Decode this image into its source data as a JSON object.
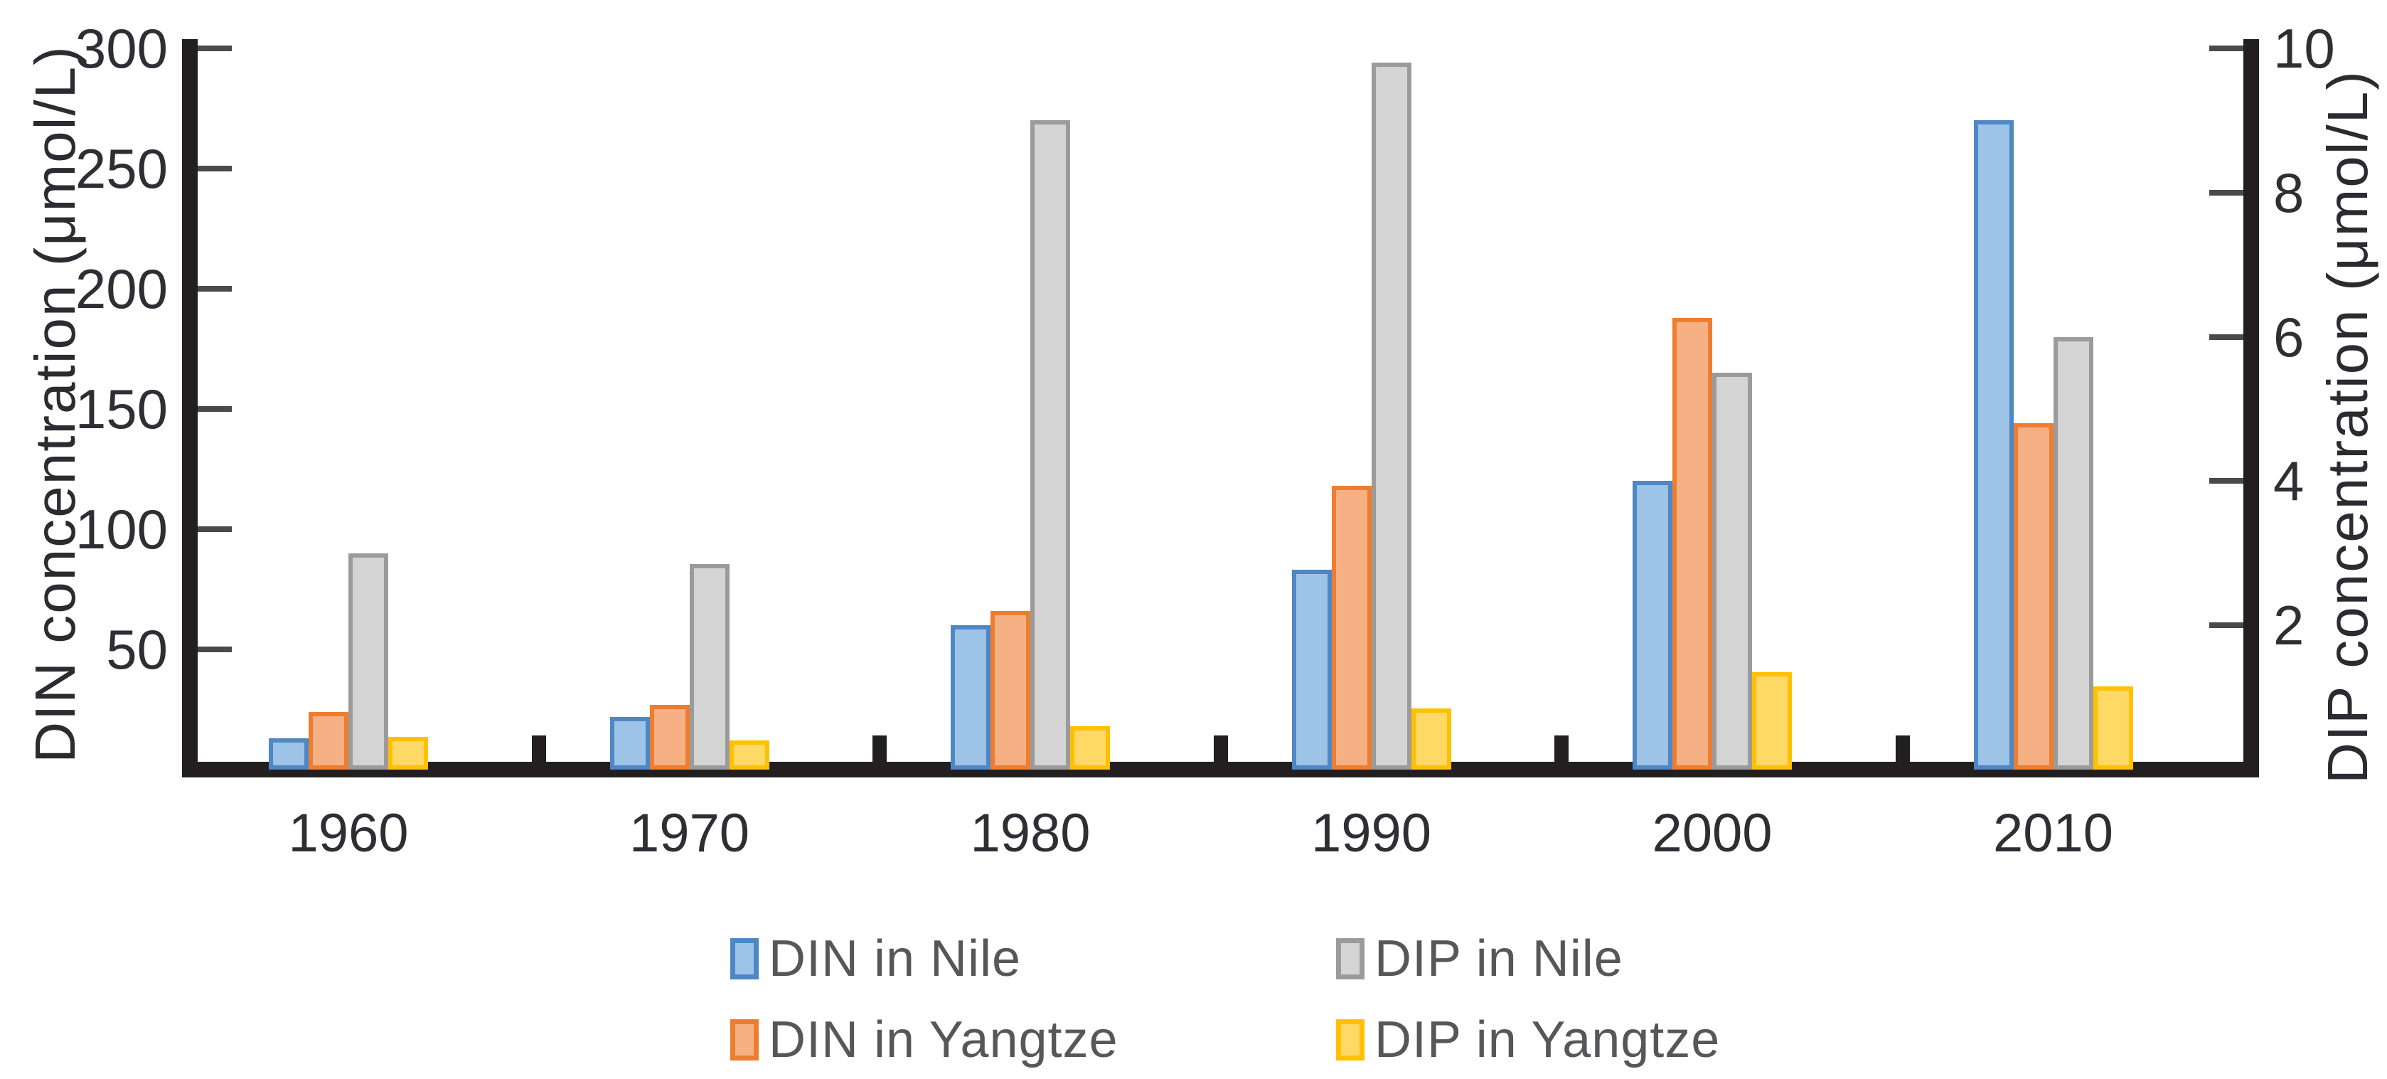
{
  "chart_data": {
    "type": "bar",
    "title": "",
    "categories": [
      "1960",
      "1970",
      "1980",
      "1990",
      "2000",
      "2010"
    ],
    "series": [
      {
        "name": "DIN in Nile",
        "axis": "left",
        "fill": "#9DC3E6",
        "border": "#4F86C6",
        "values": [
          13,
          22,
          60,
          83,
          120,
          270
        ]
      },
      {
        "name": "DIN in Yangtze",
        "axis": "left",
        "fill": "#F5B183",
        "border": "#ED7D31",
        "values": [
          24,
          27,
          66,
          118,
          188,
          144
        ]
      },
      {
        "name": "DIP in Nile",
        "axis": "right",
        "fill": "#D4D4D4",
        "border": "#9B9B9B",
        "values": [
          3.0,
          2.85,
          9.0,
          9.8,
          5.5,
          6.0
        ]
      },
      {
        "name": "DIP in Yangtze",
        "axis": "right",
        "fill": "#FFD966",
        "border": "#FFC000",
        "values": [
          0.45,
          0.4,
          0.6,
          0.85,
          1.35,
          1.15
        ]
      }
    ],
    "left_axis": {
      "label": "DIN concentration (μmol/L)",
      "ticks": [
        50,
        100,
        150,
        200,
        250,
        300
      ],
      "range": [
        0,
        300
      ]
    },
    "right_axis": {
      "label": "DIP concentration (μmol/L)",
      "ticks": [
        2,
        4,
        6,
        8,
        10
      ],
      "range": [
        0,
        10
      ]
    },
    "right_to_left_scale": 30,
    "legend_position": "bottom",
    "grid": false,
    "colors": {
      "axis": "#231f20",
      "tick": "#4a4a4a",
      "text": "#2e2e34",
      "legend_text": "#57565b",
      "background": "#ffffff"
    }
  },
  "legend": {
    "layout": [
      [
        0,
        2
      ],
      [
        1,
        3
      ]
    ]
  }
}
